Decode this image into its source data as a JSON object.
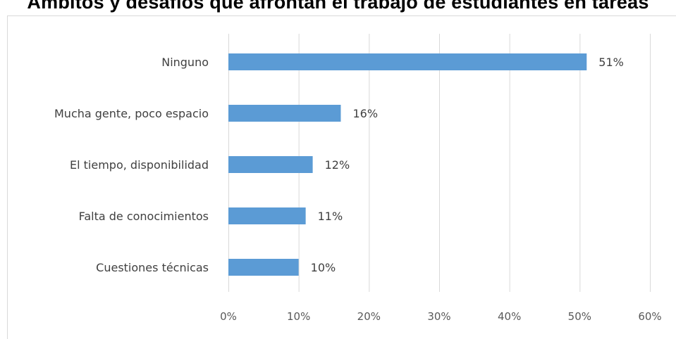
{
  "page": {
    "title": "Ámbitos y desafíos que afrontan el trabajo de estudiantes en tareas"
  },
  "chart_data": {
    "type": "bar",
    "orientation": "horizontal",
    "title": "",
    "xlabel": "",
    "ylabel": "",
    "categories": [
      "Ninguno",
      "Mucha gente, poco espacio",
      "El tiempo, disponibilidad",
      "Falta de conocimientos",
      "Cuestiones técnicas"
    ],
    "values": [
      51,
      16,
      12,
      11,
      10
    ],
    "data_labels": [
      "51%",
      "16%",
      "12%",
      "11%",
      "10%"
    ],
    "xlim": [
      0,
      60
    ],
    "x_ticks": [
      0,
      10,
      20,
      30,
      40,
      50,
      60
    ],
    "x_tick_labels": [
      "0%",
      "10%",
      "20%",
      "30%",
      "40%",
      "50%",
      "60%"
    ],
    "grid": "vertical",
    "legend": "none",
    "colors": {
      "bar": "#5b9bd5",
      "grid": "#d9d9d9",
      "text": "#404040"
    }
  }
}
